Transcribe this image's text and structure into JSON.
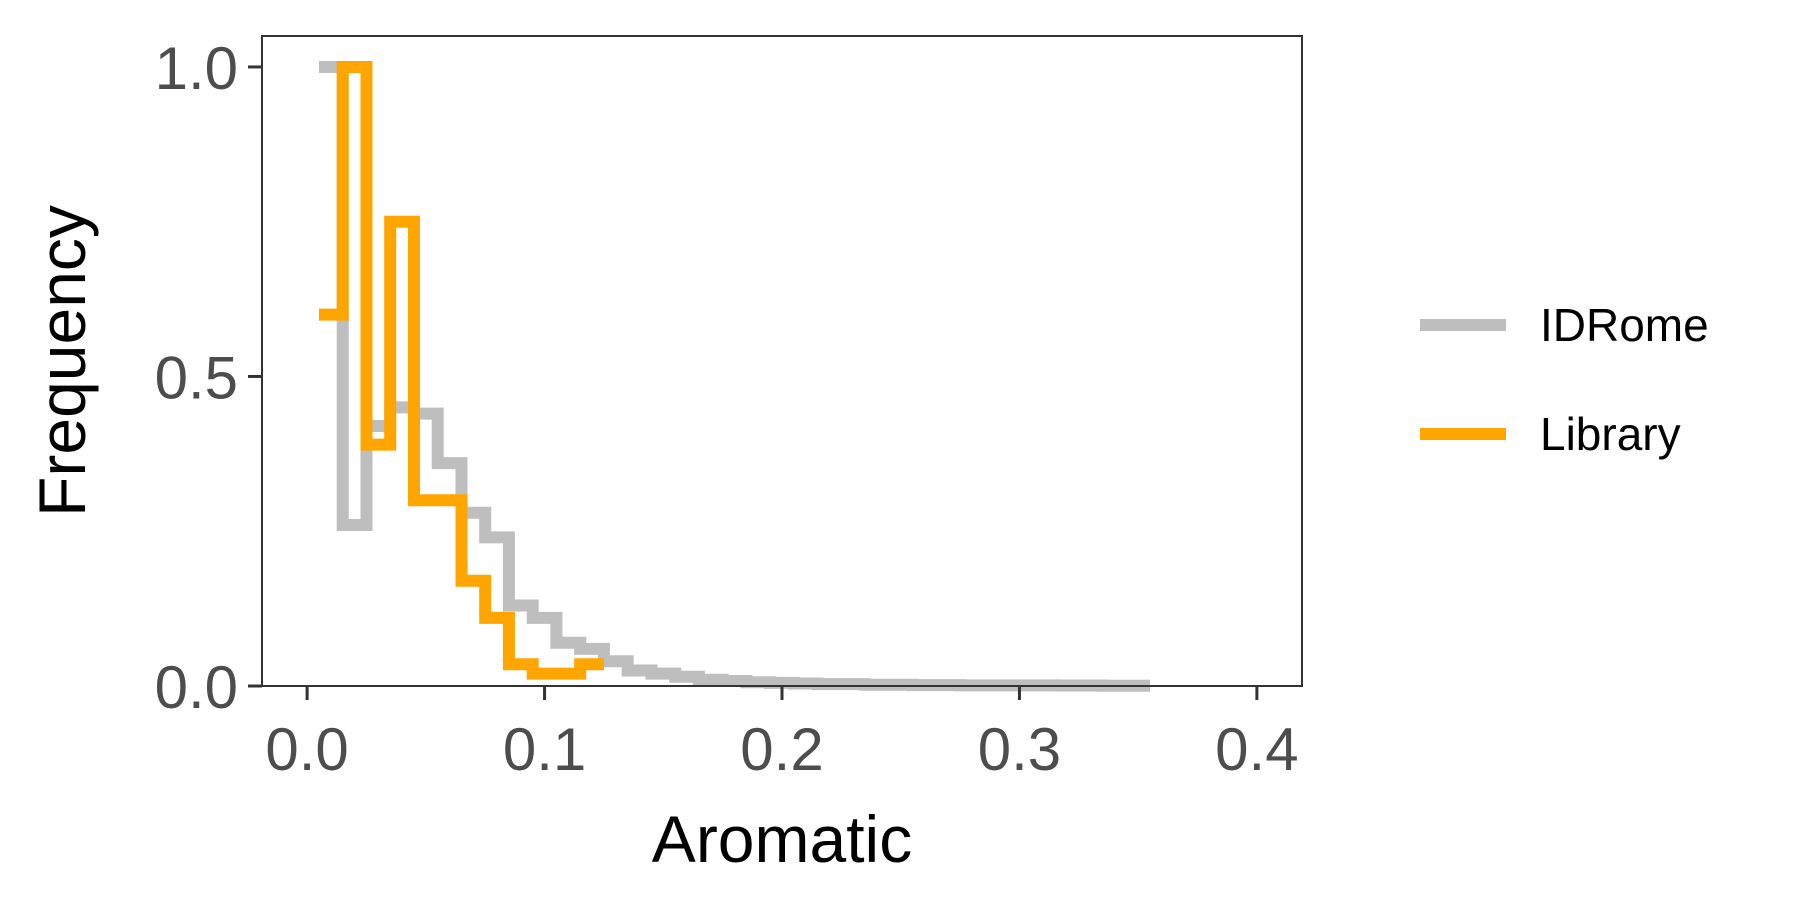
{
  "chart_data": {
    "type": "line",
    "title": "",
    "xlabel": "Aromatic",
    "ylabel": "Frequency",
    "xlim": [
      -0.019,
      0.419
    ],
    "ylim": [
      0,
      1.05
    ],
    "x_ticks": [
      0.0,
      0.1,
      0.2,
      0.3,
      0.4
    ],
    "x_tick_labels": [
      "0.0",
      "0.1",
      "0.2",
      "0.3",
      "0.4"
    ],
    "y_ticks": [
      0.0,
      0.5,
      1.0
    ],
    "y_tick_labels": [
      "0.0",
      "0.5",
      "1.0"
    ],
    "grid": false,
    "legend_position": "right",
    "series": [
      {
        "name": "IDRome",
        "color": "#bebebe",
        "x": [
          0.01,
          0.02,
          0.03,
          0.04,
          0.05,
          0.06,
          0.07,
          0.08,
          0.09,
          0.1,
          0.11,
          0.12,
          0.13,
          0.14,
          0.15,
          0.16,
          0.17,
          0.18,
          0.19,
          0.2,
          0.21,
          0.22,
          0.23,
          0.24,
          0.25,
          0.26,
          0.27,
          0.28,
          0.29,
          0.3,
          0.31,
          0.32,
          0.33,
          0.34,
          0.35
        ],
        "y": [
          1.0,
          0.26,
          0.42,
          0.45,
          0.44,
          0.36,
          0.28,
          0.24,
          0.13,
          0.11,
          0.07,
          0.06,
          0.04,
          0.025,
          0.02,
          0.015,
          0.01,
          0.008,
          0.006,
          0.005,
          0.004,
          0.003,
          0.003,
          0.002,
          0.002,
          0.0015,
          0.0015,
          0.001,
          0.001,
          0.001,
          0.001,
          0.0008,
          0.0008,
          0.0005,
          0.0005
        ]
      },
      {
        "name": "Library",
        "color": "#ffa500",
        "x": [
          0.01,
          0.02,
          0.03,
          0.04,
          0.05,
          0.06,
          0.07,
          0.08,
          0.09,
          0.1,
          0.11,
          0.12
        ],
        "y": [
          0.6,
          1.0,
          0.39,
          0.75,
          0.3,
          0.3,
          0.17,
          0.11,
          0.035,
          0.02,
          0.02,
          0.035
        ]
      }
    ]
  }
}
